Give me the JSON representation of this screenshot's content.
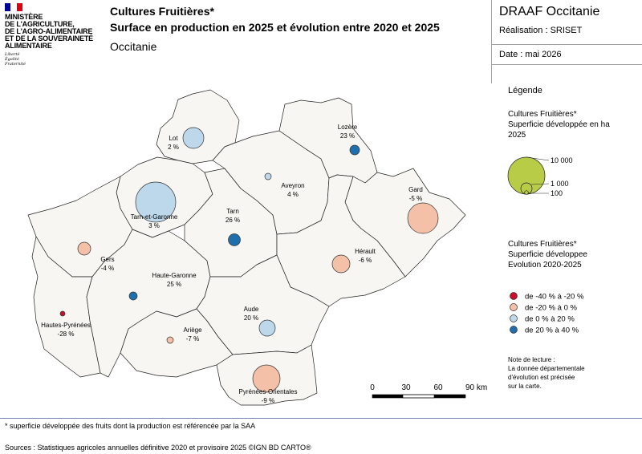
{
  "header": {
    "ministry_lines": [
      "MINISTÈRE",
      "DE L'AGRICULTURE,",
      "DE L'AGRO-ALIMENTAIRE",
      "ET DE LA SOUVERAINETÉ",
      "ALIMENTAIRE"
    ],
    "motto": [
      "Liberté",
      "Égalité",
      "Fraternité"
    ],
    "title_line1": "Cultures Fruitières*",
    "title_line2": "Surface en production en 2025 et évolution entre 2020 et 2025",
    "region": "Occitanie",
    "org": "DRAAF Occitanie",
    "realisation": "Réalisation : SRISET",
    "date": "Date : mai 2026"
  },
  "legend": {
    "title": "Légende",
    "size_title": [
      "Cultures Fruitières*",
      "Superficie développée en ha",
      "2025"
    ],
    "size_values": [
      {
        "label": "10 000",
        "value": 10000
      },
      {
        "label": "1 000",
        "value": 1000
      },
      {
        "label": "100",
        "value": 100
      }
    ],
    "color_title": [
      "Cultures Fruitières*",
      "Superficie développee",
      "Evolution 2020-2025"
    ],
    "classes": [
      {
        "label": "de -40 % à -20 %",
        "color": "#c8102e"
      },
      {
        "label": "de -20 % à 0 %",
        "color": "#f4c1a8"
      },
      {
        "label": "de 0 % à 20 %",
        "color": "#bcd8ea"
      },
      {
        "label": "de 20 % à 40 %",
        "color": "#1f6fad"
      }
    ],
    "note": [
      "Note de lecture :",
      "La donnée départementale",
      "d'évolution est précisée",
      "sur la carte."
    ]
  },
  "scale": {
    "labels": [
      "0",
      "30",
      "60",
      "90 km"
    ]
  },
  "departments": [
    {
      "name": "Lot",
      "evolution": "2 %",
      "class": 2
    },
    {
      "name": "Lozère",
      "evolution": "23 %",
      "class": 3
    },
    {
      "name": "Aveyron",
      "evolution": "4 %",
      "class": 2
    },
    {
      "name": "Gard",
      "evolution": "-5 %",
      "class": 1
    },
    {
      "name": "Tarn-et-Garonne",
      "evolution": "3 %",
      "class": 2
    },
    {
      "name": "Tarn",
      "evolution": "26 %",
      "class": 3
    },
    {
      "name": "Gers",
      "evolution": "-4 %",
      "class": 1
    },
    {
      "name": "Hérault",
      "evolution": "-6 %",
      "class": 1
    },
    {
      "name": "Haute-Garonne",
      "evolution": "25 %",
      "class": 3
    },
    {
      "name": "Hautes-Pyrénées",
      "evolution": "-28 %",
      "class": 0
    },
    {
      "name": "Aude",
      "evolution": "20 %",
      "class": 2
    },
    {
      "name": "Ariège",
      "evolution": "-7 %",
      "class": 1
    },
    {
      "name": "Pyrénées-Orientales",
      "evolution": "-9 %",
      "class": 1
    }
  ],
  "footer": {
    "footnote": "* superficie développée des fruits dont la production est référencée par la SAA",
    "sources": "Sources : Statistiques agricoles annuelles définitive 2020 et provisoire 2025 ©IGN BD CARTO®"
  },
  "colors": {
    "map_fill": "#f7f6f2",
    "size_legend_fill": "#b9cc48",
    "flag_blue": "#000091",
    "flag_red": "#e1000f"
  }
}
